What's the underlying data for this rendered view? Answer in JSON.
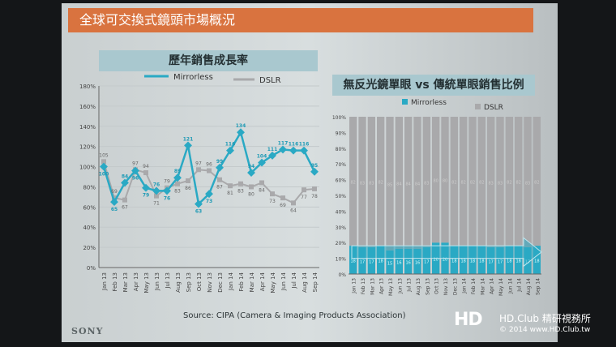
{
  "slide": {
    "title": "全球可交換式鏡頭市場概況",
    "brand": "SONY",
    "source": "Source: CIPA (Camera & Imaging Products Association)"
  },
  "watermark": {
    "logo": "HD CLUB",
    "line1": "HD.Club 精研視務所",
    "line2": "© 2014  www.HD.Club.tw"
  },
  "colors": {
    "header": "#d9733f",
    "mirrorless": "#2aa9c4",
    "dslr": "#a9a9ab"
  },
  "chart_data": [
    {
      "type": "line",
      "title": "歷年銷售成長率",
      "categories": [
        "Jan 13",
        "Feb 13",
        "Mar 13",
        "Apr 13",
        "May 13",
        "Jun 13",
        "Jul 13",
        "Aug 13",
        "Sep 13",
        "Oct 13",
        "Nov 13",
        "Dec 13",
        "Jan 14",
        "Feb 14",
        "Mar 14",
        "Apr 14",
        "May 14",
        "Jun 14",
        "Jul 14",
        "Aug 14",
        "Sep 14"
      ],
      "ylim": [
        0,
        180
      ],
      "yticks": [
        "0%",
        "20%",
        "40%",
        "60%",
        "80%",
        "100%",
        "120%",
        "140%",
        "160%",
        "180%"
      ],
      "legend": "top",
      "series": [
        {
          "name": "Mirrorless",
          "values": [
            100,
            65,
            84,
            96,
            79,
            76,
            76,
            89,
            121,
            63,
            73,
            99,
            116,
            134,
            94,
            104,
            111,
            117,
            116,
            116,
            95
          ]
        },
        {
          "name": "DSLR",
          "values": [
            105,
            69,
            67,
            97,
            94,
            71,
            79,
            83,
            86,
            97,
            96,
            87,
            81,
            83,
            80,
            84,
            73,
            69,
            64,
            77,
            78
          ]
        }
      ]
    },
    {
      "type": "bar",
      "stacked": true,
      "title": "無反光鏡單眼 vs 傳統單眼銷售比例",
      "categories": [
        "Jan 13",
        "Feb 13",
        "Mar 13",
        "Apr 13",
        "May 13",
        "Jun 13",
        "Jul 13",
        "Aug 13",
        "Sep 13",
        "Oct 13",
        "Nov 13",
        "Dec 13",
        "Jan 14",
        "Feb 14",
        "Mar 14",
        "Apr 14",
        "May 14",
        "Jun 14",
        "Jul 14",
        "Aug 14",
        "Sep 14"
      ],
      "ylim": [
        0,
        100
      ],
      "yticks": [
        "0%",
        "10%",
        "20%",
        "30%",
        "40%",
        "50%",
        "60%",
        "70%",
        "80%",
        "90%",
        "100%"
      ],
      "legend": "top",
      "series": [
        {
          "name": "Mirrorless",
          "values": [
            18,
            17,
            17,
            18,
            15,
            16,
            16,
            16,
            17,
            20,
            20,
            18,
            18,
            18,
            18,
            17,
            17,
            18,
            18,
            17,
            18
          ]
        },
        {
          "name": "DSLR",
          "values": [
            82,
            83,
            83,
            82,
            85,
            84,
            84,
            84,
            83,
            80,
            80,
            82,
            82,
            82,
            82,
            83,
            83,
            82,
            82,
            83,
            82
          ]
        }
      ]
    }
  ]
}
